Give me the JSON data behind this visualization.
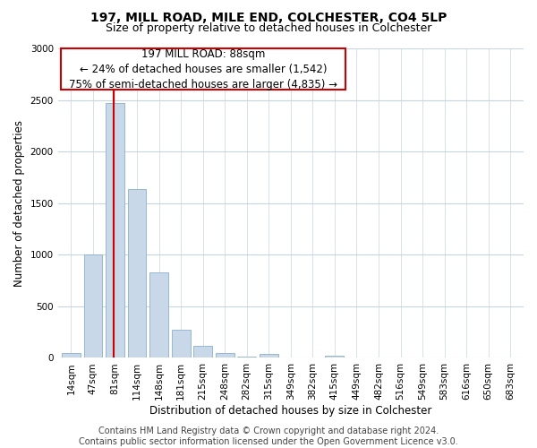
{
  "title": "197, MILL ROAD, MILE END, COLCHESTER, CO4 5LP",
  "subtitle": "Size of property relative to detached houses in Colchester",
  "xlabel": "Distribution of detached houses by size in Colchester",
  "ylabel": "Number of detached properties",
  "categories": [
    "14sqm",
    "47sqm",
    "81sqm",
    "114sqm",
    "148sqm",
    "181sqm",
    "215sqm",
    "248sqm",
    "282sqm",
    "315sqm",
    "349sqm",
    "382sqm",
    "415sqm",
    "449sqm",
    "482sqm",
    "516sqm",
    "549sqm",
    "583sqm",
    "616sqm",
    "650sqm",
    "683sqm"
  ],
  "values": [
    50,
    1000,
    2470,
    1640,
    830,
    270,
    120,
    50,
    10,
    40,
    0,
    0,
    20,
    0,
    0,
    0,
    0,
    0,
    0,
    0,
    0
  ],
  "bar_color": "#c8d8e8",
  "bar_edgecolor": "#8ab0cc",
  "vline_x": 2,
  "vline_color": "#cc0000",
  "annotation_line1": "197 MILL ROAD: 88sqm",
  "annotation_line2": "← 24% of detached houses are smaller (1,542)",
  "annotation_line3": "75% of semi-detached houses are larger (4,835) →",
  "annotation_box_color": "#ffffff",
  "annotation_box_edgecolor": "#cc0000",
  "ylim": [
    0,
    3000
  ],
  "yticks": [
    0,
    500,
    1000,
    1500,
    2000,
    2500,
    3000
  ],
  "footer": "Contains HM Land Registry data © Crown copyright and database right 2024.\nContains public sector information licensed under the Open Government Licence v3.0.",
  "bg_color": "#ffffff",
  "grid_color": "#c8d4e0",
  "title_fontsize": 10,
  "subtitle_fontsize": 9,
  "xlabel_fontsize": 8.5,
  "ylabel_fontsize": 8.5,
  "tick_fontsize": 7.5,
  "annotation_fontsize": 8.5,
  "footer_fontsize": 7
}
